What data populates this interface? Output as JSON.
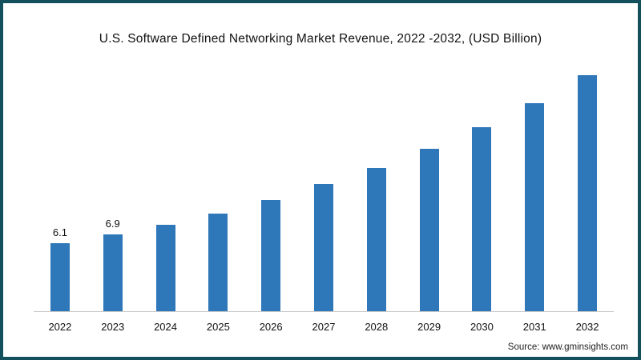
{
  "title": "U.S. Software Defined Networking Market Revenue, 2022 -2032, (USD Billion)",
  "source": "Source: www.gminsights.com",
  "colors": {
    "bar": "#2e77b8",
    "frame": "#11505c",
    "axis": "#c8c8c8"
  },
  "chart_data": {
    "type": "bar",
    "title": "U.S. Software Defined Networking Market Revenue, 2022 -2032, (USD Billion)",
    "categories": [
      "2022",
      "2023",
      "2024",
      "2025",
      "2026",
      "2027",
      "2028",
      "2029",
      "2030",
      "2031",
      "2032"
    ],
    "values": [
      6.1,
      6.9,
      7.8,
      8.8,
      10.0,
      11.4,
      12.9,
      14.6,
      16.5,
      18.7,
      21.2
    ],
    "data_labels": [
      "6.1",
      "6.9",
      "",
      "",
      "",
      "",
      "",
      "",
      "",
      "",
      ""
    ],
    "xlabel": "",
    "ylabel": "",
    "ylim": [
      0,
      22
    ],
    "grid": false,
    "legend": false,
    "bar_color": "#2e77b8"
  }
}
